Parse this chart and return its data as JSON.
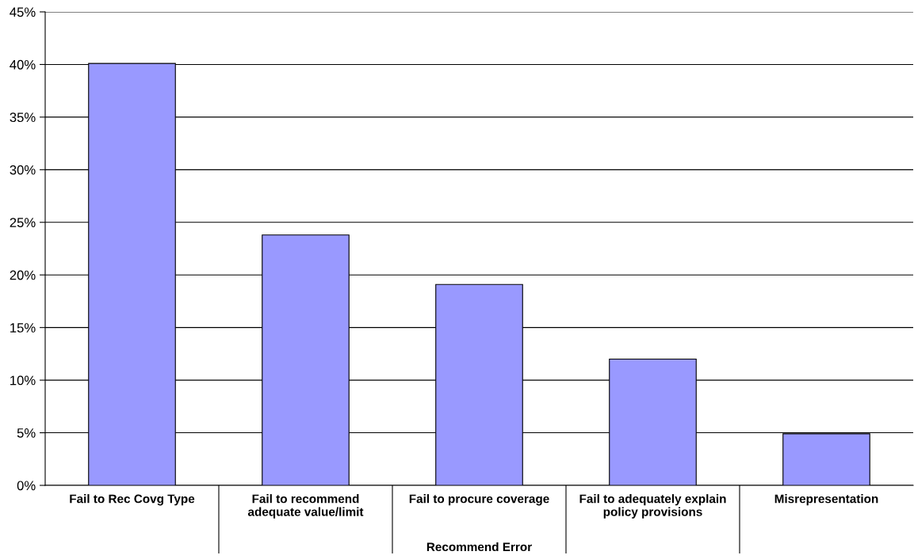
{
  "chart_data": {
    "type": "bar",
    "xlabel": "Recommend Error",
    "categories": [
      "Fail to Rec Covg Type",
      "Fail to recommend\nadequate value/limit",
      "Fail to procure coverage",
      "Fail to adequately explain\npolicy provisions",
      "Misrepresentation"
    ],
    "values": [
      40.1,
      23.8,
      19.1,
      12.0,
      4.9
    ],
    "color": "#9999ff",
    "ylim": [
      0,
      45
    ],
    "yticks": [
      {
        "value": 0,
        "label": "0%"
      },
      {
        "value": 5,
        "label": "5%"
      },
      {
        "value": 10,
        "label": "10%"
      },
      {
        "value": 15,
        "label": "15%"
      },
      {
        "value": 20,
        "label": "20%"
      },
      {
        "value": 25,
        "label": "25%"
      },
      {
        "value": 30,
        "label": "30%"
      },
      {
        "value": 35,
        "label": "35%"
      },
      {
        "value": 40,
        "label": "40%"
      },
      {
        "value": 45,
        "label": "45%"
      }
    ],
    "grid": "y",
    "legend": false
  }
}
